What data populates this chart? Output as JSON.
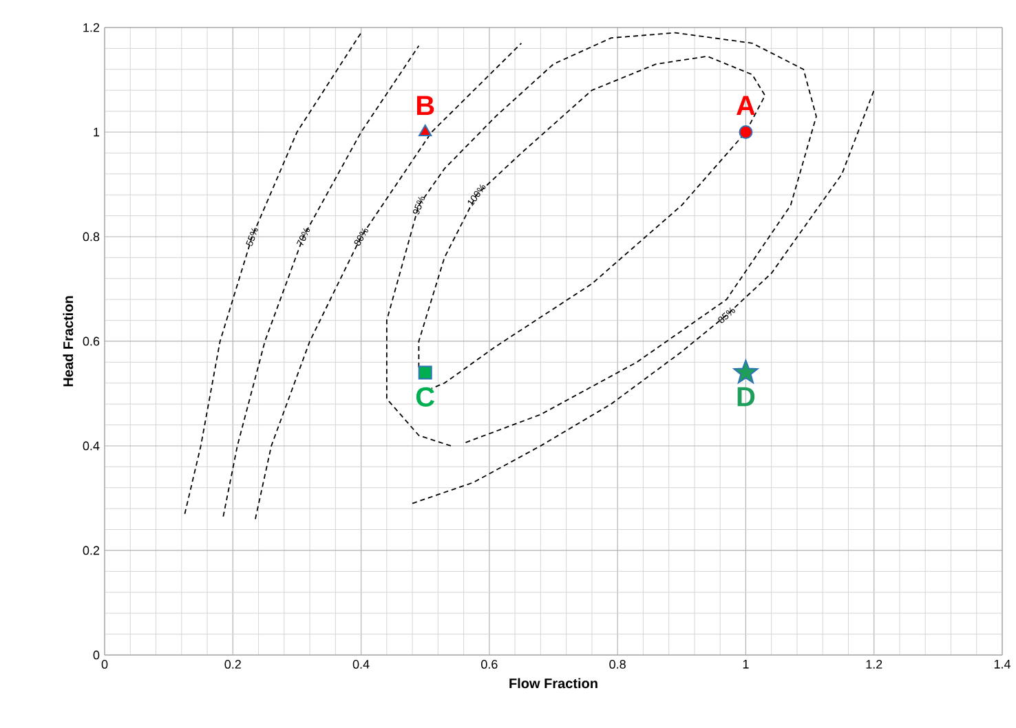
{
  "chart_data": {
    "type": "line",
    "xlabel": "Flow Fraction",
    "ylabel": "Head Fraction",
    "xlim": [
      0,
      1.4
    ],
    "ylim": [
      0,
      1.2
    ],
    "xticks": [
      0,
      0.2,
      0.4,
      0.6,
      0.8,
      1,
      1.2,
      1.4
    ],
    "yticks": [
      0,
      0.2,
      0.4,
      0.6,
      0.8,
      1,
      1.2
    ],
    "grid": true,
    "line_style": "dashed",
    "marker": "none",
    "series": [
      {
        "name": "55%",
        "color": "#000000",
        "x": [
          0.125,
          0.15,
          0.18,
          0.23,
          0.3,
          0.4
        ],
        "values": [
          0.27,
          0.4,
          0.6,
          0.8,
          1.0,
          1.19
        ]
      },
      {
        "name": "70%",
        "color": "#000000",
        "x": [
          0.185,
          0.207,
          0.25,
          0.31,
          0.4,
          0.49
        ],
        "values": [
          0.265,
          0.4,
          0.6,
          0.8,
          1.0,
          1.165
        ]
      },
      {
        "name": "80%",
        "color": "#000000",
        "x": [
          0.235,
          0.26,
          0.32,
          0.4,
          0.51,
          0.65
        ],
        "values": [
          0.26,
          0.4,
          0.6,
          0.8,
          1.0,
          1.17
        ]
      },
      {
        "name": "85%",
        "color": "#000000",
        "x": [
          0.48,
          0.575,
          0.68,
          0.79,
          0.9,
          0.97,
          1.04,
          1.15,
          1.2
        ],
        "values": [
          0.29,
          0.33,
          0.4,
          0.48,
          0.58,
          0.65,
          0.73,
          0.92,
          1.08
        ]
      },
      {
        "name": "95%",
        "color": "#000000",
        "x": [
          0.54,
          0.49,
          0.44,
          0.44,
          0.49,
          0.53,
          0.61,
          0.7,
          0.79,
          0.89,
          1.01,
          1.09,
          1.11,
          1.07,
          0.97,
          0.83,
          0.68,
          0.56
        ],
        "values": [
          0.4,
          0.42,
          0.49,
          0.64,
          0.86,
          0.93,
          1.03,
          1.13,
          1.18,
          1.19,
          1.17,
          1.12,
          1.03,
          0.86,
          0.68,
          0.56,
          0.46,
          0.405
        ]
      },
      {
        "name": "100%",
        "color": "#000000",
        "x": [
          0.49,
          0.49,
          0.53,
          0.58,
          0.65,
          0.76,
          0.86,
          0.94,
          1.01,
          1.03,
          1.0,
          0.9,
          0.76,
          0.61,
          0.53,
          0.51
        ],
        "values": [
          0.55,
          0.6,
          0.76,
          0.88,
          0.96,
          1.08,
          1.13,
          1.145,
          1.11,
          1.07,
          1.0,
          0.86,
          0.71,
          0.59,
          0.52,
          0.51
        ]
      },
      {
        "name": "A",
        "type": "scatter",
        "marker": "circle",
        "color": "#ff0000",
        "x": [
          1.0
        ],
        "values": [
          1.0
        ]
      },
      {
        "name": "B",
        "type": "scatter",
        "marker": "triangle",
        "color": "#ff0000",
        "x": [
          0.5
        ],
        "values": [
          1.0
        ]
      },
      {
        "name": "C",
        "type": "scatter",
        "marker": "square",
        "color": "#00b050",
        "x": [
          0.5
        ],
        "values": [
          0.54
        ]
      },
      {
        "name": "D",
        "type": "scatter",
        "marker": "star",
        "color": "#1e9e5a",
        "x": [
          1.0
        ],
        "values": [
          0.54
        ]
      }
    ]
  }
}
